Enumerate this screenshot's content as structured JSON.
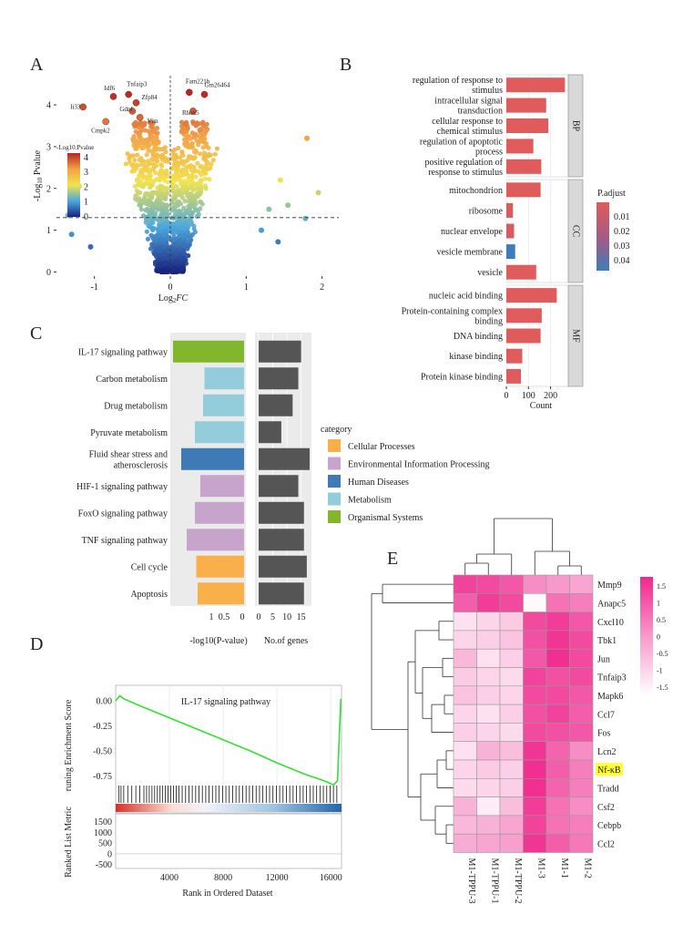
{
  "panels": {
    "A": "A",
    "B": "B",
    "C": "C",
    "D": "D",
    "E": "E"
  },
  "chart_data": [
    {
      "panel": "A",
      "type": "scatter",
      "title": "",
      "xlabel": "Log2FC",
      "ylabel": "-Log10 Pvalue",
      "xlim": [
        -1.5,
        2.1
      ],
      "ylim": [
        -0.1,
        4.7
      ],
      "xticks": [
        -1,
        0,
        1,
        2
      ],
      "yticks": [
        0,
        1,
        2,
        3,
        4
      ],
      "threshold_y": 1.3,
      "legend": {
        "title": "-Log10.Pvalue",
        "ticks": [
          4,
          3,
          2,
          1,
          0
        ]
      },
      "labeled_genes": [
        {
          "name": "Tnfaip3",
          "x": -0.55,
          "y": 4.25
        },
        {
          "name": "Idf6",
          "x": -0.75,
          "y": 4.2
        },
        {
          "name": "Zfp84",
          "x": -0.45,
          "y": 4.05
        },
        {
          "name": "Fam221b",
          "x": 0.25,
          "y": 4.3
        },
        {
          "name": "Gm26464",
          "x": 0.45,
          "y": 4.25
        },
        {
          "name": "Ii33",
          "x": -1.15,
          "y": 3.95
        },
        {
          "name": "Gdnf",
          "x": -0.5,
          "y": 3.85
        },
        {
          "name": "Rhox5",
          "x": 0.3,
          "y": 3.85
        },
        {
          "name": "Vim",
          "x": -0.4,
          "y": 3.7
        },
        {
          "name": "Cmpk2",
          "x": -0.85,
          "y": 3.6
        }
      ],
      "extra_points": [
        {
          "x": 1.8,
          "y": 3.2
        },
        {
          "x": 1.78,
          "y": 1.28
        },
        {
          "x": 1.95,
          "y": 1.9
        },
        {
          "x": 1.55,
          "y": 1.6
        },
        {
          "x": 1.3,
          "y": 1.5
        },
        {
          "x": 1.2,
          "y": 1.0
        },
        {
          "x": 1.42,
          "y": 0.72
        },
        {
          "x": -1.35,
          "y": 1.35
        },
        {
          "x": -1.2,
          "y": 2.05
        },
        {
          "x": -1.3,
          "y": 0.9
        },
        {
          "x": -1.05,
          "y": 0.6
        },
        {
          "x": 1.45,
          "y": 2.2
        }
      ]
    },
    {
      "panel": "B",
      "type": "bar",
      "orientation": "horizontal",
      "xlabel": "Count",
      "xticks": [
        0,
        100,
        200
      ],
      "xlim": [
        0,
        280
      ],
      "legend": {
        "title": "P.adjust",
        "ticks": [
          "0.01",
          "0.02",
          "0.03",
          "0.04"
        ]
      },
      "groups": [
        {
          "name": "BP",
          "items": [
            {
              "label": [
                "regulation of response to",
                "stimulus"
              ],
              "value": 265,
              "padj": 0.005
            },
            {
              "label": [
                "intracellular signal",
                "transduction"
              ],
              "value": 180,
              "padj": 0.005
            },
            {
              "label": [
                "cellular response to",
                "chemical stimulus"
              ],
              "value": 190,
              "padj": 0.005
            },
            {
              "label": [
                "regulation of apoptotic",
                "process"
              ],
              "value": 122,
              "padj": 0.005
            },
            {
              "label": [
                "positive regulation of",
                "response to stimulus"
              ],
              "value": 158,
              "padj": 0.005
            }
          ]
        },
        {
          "name": "CC",
          "items": [
            {
              "label": [
                "mitochondrion"
              ],
              "value": 155,
              "padj": 0.005
            },
            {
              "label": [
                "ribosome"
              ],
              "value": 30,
              "padj": 0.008
            },
            {
              "label": [
                "nuclear envelope"
              ],
              "value": 35,
              "padj": 0.008
            },
            {
              "label": [
                "vesicle membrane"
              ],
              "value": 40,
              "padj": 0.045
            },
            {
              "label": [
                "vesicle"
              ],
              "value": 135,
              "padj": 0.005
            }
          ]
        },
        {
          "name": "MF",
          "items": [
            {
              "label": [
                "nucleic acid binding"
              ],
              "value": 228,
              "padj": 0.005
            },
            {
              "label": [
                "Protein-containing complex",
                "binding"
              ],
              "value": 160,
              "padj": 0.005
            },
            {
              "label": [
                "DNA binding"
              ],
              "value": 155,
              "padj": 0.005
            },
            {
              "label": [
                "kinase binding"
              ],
              "value": 72,
              "padj": 0.005
            },
            {
              "label": [
                "Protein kinase binding"
              ],
              "value": 66,
              "padj": 0.005
            }
          ]
        }
      ]
    },
    {
      "panel": "C",
      "type": "bar",
      "orientation": "horizontal",
      "left_xlabel": "-log10(P-value)",
      "right_xlabel": "No.of genes",
      "left_ticks": [
        "1",
        "0.5",
        "0"
      ],
      "right_ticks": [
        0,
        5,
        10,
        15
      ],
      "right_xlim": [
        0,
        18
      ],
      "legend_title": "category",
      "categories": [
        {
          "name": "Cellular Processes",
          "color": "#F9B04A"
        },
        {
          "name": "Environmental Information Processing",
          "color": "#C7A4CB"
        },
        {
          "name": "Human Diseases",
          "color": "#3E7BB6"
        },
        {
          "name": "Metabolism",
          "color": "#93CCDB"
        },
        {
          "name": "Organismal Systems",
          "color": "#82B62C"
        }
      ],
      "pathways": [
        {
          "label": [
            "IL-17 signaling pathway"
          ],
          "category": "Organismal Systems",
          "neglogp": 2.6,
          "genes": 15
        },
        {
          "label": [
            "Carbon metabolism"
          ],
          "category": "Metabolism",
          "neglogp": 1.45,
          "genes": 14
        },
        {
          "label": [
            "Drug metabolism"
          ],
          "category": "Metabolism",
          "neglogp": 1.5,
          "genes": 12
        },
        {
          "label": [
            "Pyruvate metabolism"
          ],
          "category": "Metabolism",
          "neglogp": 1.8,
          "genes": 8
        },
        {
          "label": [
            "Fluid shear stress and",
            "atherosclerosis"
          ],
          "category": "Human Diseases",
          "neglogp": 2.3,
          "genes": 18
        },
        {
          "label": [
            "HIF-1 signaling pathway"
          ],
          "category": "Environmental Information Processing",
          "neglogp": 1.6,
          "genes": 14
        },
        {
          "label": [
            "FoxO signaling pathway"
          ],
          "category": "Environmental Information Processing",
          "neglogp": 1.8,
          "genes": 16
        },
        {
          "label": [
            "TNF signaling pathway"
          ],
          "category": "Environmental Information Processing",
          "neglogp": 2.1,
          "genes": 16
        },
        {
          "label": [
            "Cell cycle"
          ],
          "category": "Cellular Processes",
          "neglogp": 1.75,
          "genes": 17
        },
        {
          "label": [
            "Apoptosis"
          ],
          "category": "Cellular Processes",
          "neglogp": 1.7,
          "genes": 16
        }
      ]
    },
    {
      "panel": "D",
      "type": "line",
      "title": "IL-17 signaling pathway",
      "ylabel_top": "runing Enrichment Score",
      "ylabel_bottom": "Ranked List Metric",
      "xlabel": "Rank in Ordered Dataset",
      "xlim": [
        0,
        16800
      ],
      "xticks": [
        4000,
        8000,
        12000,
        16000
      ],
      "es_yticks": [
        "0.00",
        "-0.25",
        "-0.50",
        "-0.75"
      ],
      "es_ylim": [
        -0.92,
        0.1
      ],
      "metric_yticks": [
        1500,
        1000,
        500,
        0,
        -500
      ],
      "metric_ylim": [
        -600,
        1700
      ],
      "es_curve": [
        [
          0,
          0.0
        ],
        [
          300,
          0.05
        ],
        [
          600,
          0.02
        ],
        [
          2000,
          -0.06
        ],
        [
          4000,
          -0.17
        ],
        [
          6000,
          -0.28
        ],
        [
          8000,
          -0.39
        ],
        [
          10000,
          -0.5
        ],
        [
          12000,
          -0.62
        ],
        [
          14000,
          -0.73
        ],
        [
          15500,
          -0.8
        ],
        [
          16200,
          -0.84
        ],
        [
          16500,
          -0.8
        ],
        [
          16650,
          -0.3
        ],
        [
          16750,
          0.02
        ]
      ],
      "hit_ranks": [
        250,
        400,
        600,
        900,
        1200,
        1500,
        1800,
        2100,
        2300,
        2500,
        2700,
        2900,
        3100,
        3300,
        3500,
        3700,
        3900,
        4100,
        4300,
        4500,
        4700,
        4950,
        5200,
        5450,
        5700,
        5950,
        6200,
        6450,
        6700,
        6950,
        7200,
        7450,
        7700,
        7950,
        8200,
        8450,
        8700,
        8950,
        9200,
        9450,
        9700,
        9950,
        10200,
        10450,
        10700,
        10950,
        11200,
        11450,
        11700,
        11950,
        12200,
        12450,
        12700,
        12950,
        13200,
        13450,
        13700,
        13950,
        14200,
        14450,
        14700,
        14950,
        15200,
        15450,
        15700,
        15950,
        16200,
        16450
      ]
    },
    {
      "panel": "E",
      "type": "heatmap",
      "rows": [
        "Mmp9",
        "Anapc5",
        "Cxcl10",
        "Tbk1",
        "Jun",
        "Tnfaip3",
        "Mapk6",
        "Ccl7",
        "Fos",
        "Lcn2",
        "Nf-κB",
        "Tradd",
        "Csf2",
        "Cebpb",
        "Ccl2"
      ],
      "highlight_row": "Nf-κB",
      "columns": [
        "M1-TPPU-3",
        "M1-TPPU-1",
        "M1-TPPU-2",
        "M1-3",
        "M1-1",
        "M1-2"
      ],
      "legend_ticks": [
        "1.5",
        "1",
        "0.5",
        "0",
        "-0.5",
        "-1",
        "-1.5"
      ],
      "vlim": [
        -1.7,
        1.7
      ],
      "values": [
        [
          1.3,
          1.2,
          1.0,
          0.2,
          0.0,
          -0.2
        ],
        [
          0.9,
          1.4,
          1.2,
          -1.6,
          0.6,
          0.4
        ],
        [
          -1.2,
          -1.0,
          -0.8,
          1.2,
          1.4,
          1.0
        ],
        [
          -1.0,
          -0.9,
          -0.7,
          1.1,
          1.5,
          1.2
        ],
        [
          -0.5,
          -1.2,
          -0.9,
          1.0,
          1.6,
          1.2
        ],
        [
          -0.8,
          -1.0,
          -1.1,
          1.3,
          1.1,
          1.2
        ],
        [
          -0.7,
          -0.9,
          -1.0,
          1.2,
          1.2,
          1.0
        ],
        [
          -1.0,
          -1.2,
          -0.9,
          1.1,
          1.3,
          0.9
        ],
        [
          -0.9,
          -1.0,
          -1.1,
          1.2,
          1.1,
          1.0
        ],
        [
          -1.2,
          -0.4,
          -0.6,
          1.5,
          0.8,
          0.2
        ],
        [
          -1.0,
          -0.8,
          -0.9,
          1.6,
          0.9,
          0.4
        ],
        [
          -1.1,
          -1.0,
          -0.9,
          1.6,
          0.8,
          0.4
        ],
        [
          -0.4,
          -1.4,
          -0.6,
          1.4,
          0.6,
          0.2
        ],
        [
          -0.5,
          -0.4,
          -0.2,
          1.3,
          0.6,
          0.4
        ],
        [
          -0.3,
          -0.2,
          -0.1,
          1.5,
          0.9,
          0.5
        ]
      ]
    }
  ]
}
